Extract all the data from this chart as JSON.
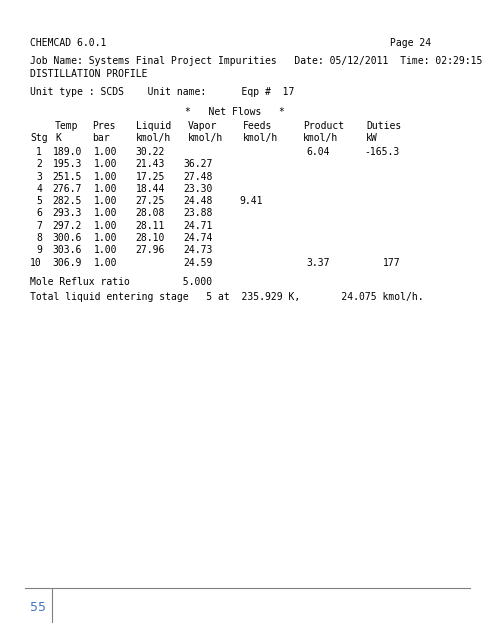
{
  "header_left": "CHEMCAD 6.0.1",
  "header_right": "Page 24",
  "job_line": "Job Name: Systems Final Project Impurities   Date: 05/12/2011  Time: 02:29:15",
  "profile_label": "DISTILLATION PROFILE",
  "unit_line": "Unit type : SCDS    Unit name:      Eqp #  17",
  "net_flows_header": "*   Net Flows   *",
  "col_headers_1": [
    "",
    "Temp",
    "Pres",
    "Liquid",
    "Vapor",
    "Feeds",
    "Product",
    "Duties"
  ],
  "col_headers_2": [
    "Stg",
    "K",
    "bar",
    "kmol/h",
    "kmol/h",
    "kmol/h",
    "kmol/h",
    "kW"
  ],
  "table_data": [
    [
      "1",
      "189.0",
      "1.00",
      "30.22",
      "",
      "",
      "6.04",
      "-165.3"
    ],
    [
      "2",
      "195.3",
      "1.00",
      "21.43",
      "36.27",
      "",
      "",
      ""
    ],
    [
      "3",
      "251.5",
      "1.00",
      "17.25",
      "27.48",
      "",
      "",
      ""
    ],
    [
      "4",
      "276.7",
      "1.00",
      "18.44",
      "23.30",
      "",
      "",
      ""
    ],
    [
      "5",
      "282.5",
      "1.00",
      "27.25",
      "24.48",
      "9.41",
      "",
      ""
    ],
    [
      "6",
      "293.3",
      "1.00",
      "28.08",
      "23.88",
      "",
      "",
      ""
    ],
    [
      "7",
      "297.2",
      "1.00",
      "28.11",
      "24.71",
      "",
      "",
      ""
    ],
    [
      "8",
      "300.6",
      "1.00",
      "28.10",
      "24.74",
      "",
      "",
      ""
    ],
    [
      "9",
      "303.6",
      "1.00",
      "27.96",
      "24.73",
      "",
      "",
      ""
    ],
    [
      "10",
      "306.9",
      "1.00",
      "",
      "24.59",
      "",
      "3.37",
      "177"
    ]
  ],
  "mole_reflux": "Mole Reflux ratio         5.000",
  "total_liquid": "Total liquid entering stage   5 at  235.929 K,       24.075 kmol/h.",
  "page_number": "55",
  "bg_color": "#ffffff",
  "text_color": "#000000",
  "page_num_color": "#4472c4",
  "footer_line_color": "#808080",
  "font_size": 7.0,
  "mono_font": "monospace"
}
